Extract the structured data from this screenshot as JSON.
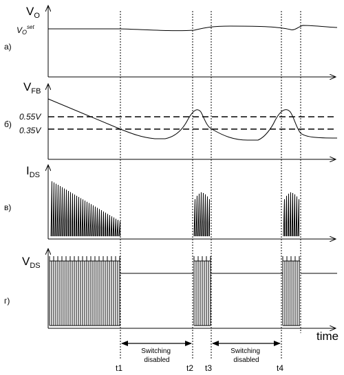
{
  "panels": {
    "a": {
      "tag": "а)",
      "signal": "V",
      "sub": "O",
      "ref_main": "V",
      "ref_sub": "O",
      "ref_sup": "set"
    },
    "b": {
      "tag": "б)",
      "signal": "V",
      "sub": "FB",
      "level_high": "0.55V",
      "level_low": "0.35V"
    },
    "c": {
      "tag": "в)",
      "signal": "I",
      "sub": "DS"
    },
    "d": {
      "tag": "г)",
      "signal": "V",
      "sub": "DS"
    }
  },
  "time_axis": {
    "label": "time"
  },
  "markers": [
    "t1",
    "t2",
    "t3",
    "t4"
  ],
  "intervals": [
    {
      "line1": "Switching",
      "line2": "disabled"
    },
    {
      "line1": "Switching",
      "line2": "disabled"
    }
  ]
}
